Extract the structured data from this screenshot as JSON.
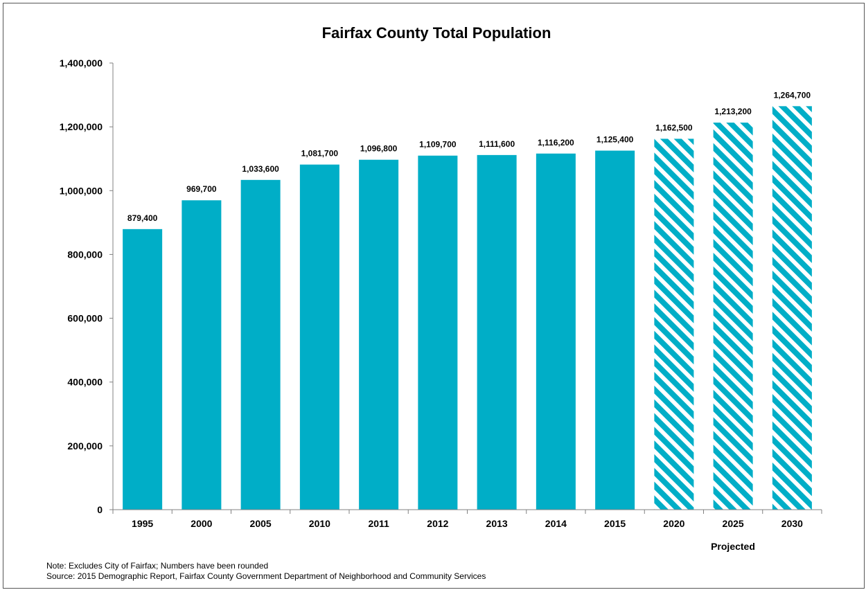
{
  "chart_data": {
    "type": "bar",
    "title": "Fairfax County Total Population",
    "categories": [
      "1995",
      "2000",
      "2005",
      "2010",
      "2011",
      "2012",
      "2013",
      "2014",
      "2015",
      "2020",
      "2025",
      "2030"
    ],
    "values": [
      879400,
      969700,
      1033600,
      1081700,
      1096800,
      1109700,
      1111600,
      1116200,
      1125400,
      1162500,
      1213200,
      1264700
    ],
    "value_labels": [
      "879,400",
      "969,700",
      "1,033,600",
      "1,081,700",
      "1,096,800",
      "1,109,700",
      "1,111,600",
      "1,116,200",
      "1,125,400",
      "1,162,500",
      "1,213,200",
      "1,264,700"
    ],
    "projected": [
      false,
      false,
      false,
      false,
      false,
      false,
      false,
      false,
      false,
      true,
      true,
      true
    ],
    "projected_label": "Projected",
    "ylim": [
      0,
      1400000
    ],
    "yticks": [
      0,
      200000,
      400000,
      600000,
      800000,
      1000000,
      1200000,
      1400000
    ],
    "ytick_labels": [
      "0",
      "200,000",
      "400,000",
      "600,000",
      "800,000",
      "1,000,000",
      "1,200,000",
      "1,400,000"
    ],
    "xlabel": "",
    "ylabel": "",
    "grid": false,
    "bar_color": "#00AEC7",
    "projected_pattern": "diagonal-stripes"
  },
  "notes": {
    "note": "Note: Excludes City of Fairfax; Numbers have been rounded",
    "source": "Source: 2015 Demographic Report, Fairfax County Government Department of Neighborhood and Community Services"
  }
}
